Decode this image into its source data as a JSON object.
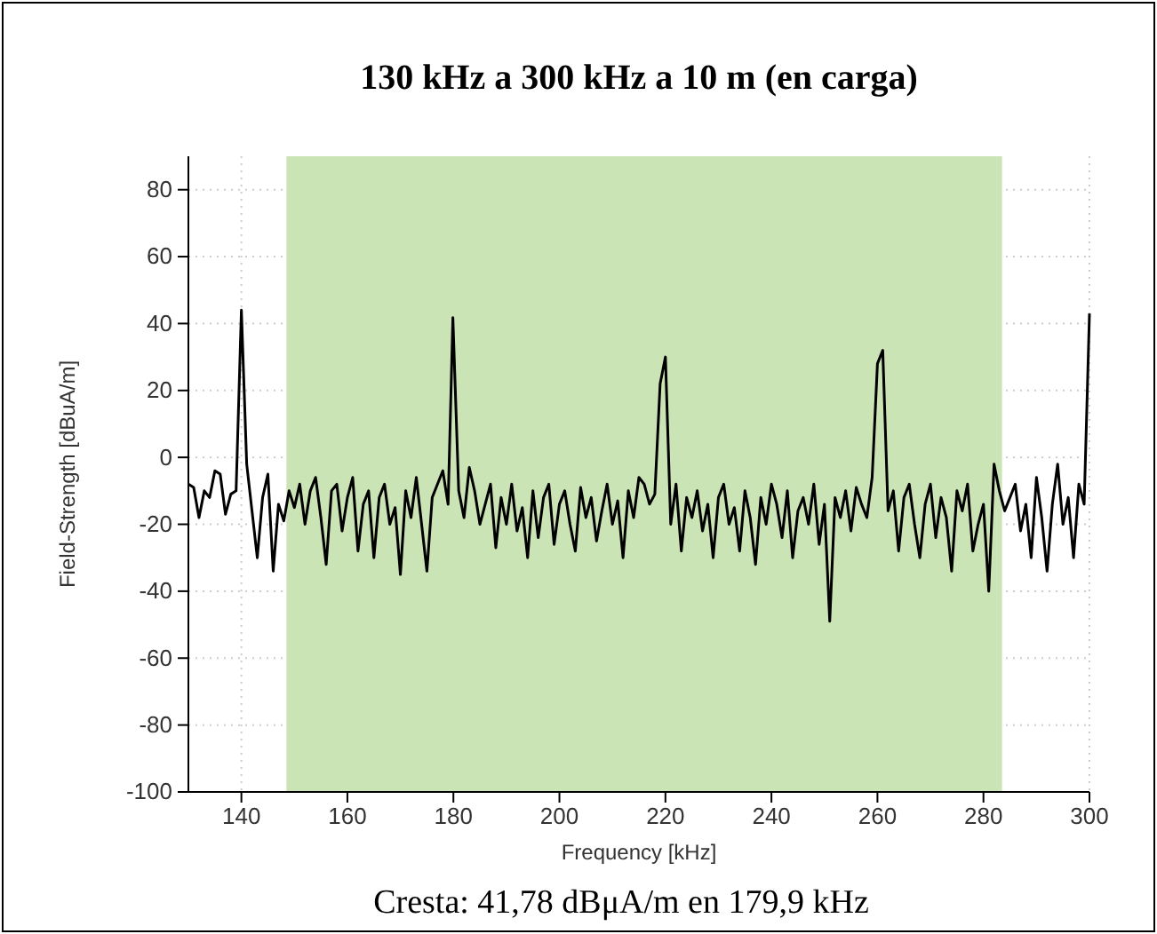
{
  "chart_data": {
    "type": "line",
    "title": "130 kHz a 300 kHz a 10 m (en carga)",
    "xlabel": "Frequency [kHz]",
    "ylabel": "Field-Strength [dBuA/m]",
    "annotations": [
      "Cresta: 41,78 dBμA/m en 179,9 kHz"
    ],
    "x": [
      130,
      131,
      132,
      133,
      134,
      135,
      136,
      137,
      138,
      139,
      140,
      141,
      142,
      143,
      144,
      145,
      146,
      147,
      148,
      149,
      150,
      151,
      152,
      153,
      154,
      155,
      156,
      157,
      158,
      159,
      160,
      161,
      162,
      163,
      164,
      165,
      166,
      167,
      168,
      169,
      170,
      171,
      172,
      173,
      174,
      175,
      176,
      177,
      178,
      179,
      179.9,
      181,
      182,
      183,
      184,
      185,
      186,
      187,
      188,
      189,
      190,
      191,
      192,
      193,
      194,
      195,
      196,
      197,
      198,
      199,
      200,
      201,
      202,
      203,
      204,
      205,
      206,
      207,
      208,
      209,
      210,
      211,
      212,
      213,
      214,
      215,
      216,
      217,
      218,
      219,
      220,
      221,
      222,
      223,
      224,
      225,
      226,
      227,
      228,
      229,
      230,
      231,
      232,
      233,
      234,
      235,
      236,
      237,
      238,
      239,
      240,
      241,
      242,
      243,
      244,
      245,
      246,
      247,
      248,
      249,
      250,
      251,
      252,
      253,
      254,
      255,
      256,
      257,
      258,
      259,
      260,
      261,
      262,
      263,
      264,
      265,
      266,
      267,
      268,
      269,
      270,
      271,
      272,
      273,
      274,
      275,
      276,
      277,
      278,
      279,
      280,
      281,
      282,
      283,
      284,
      285,
      286,
      287,
      288,
      289,
      290,
      291,
      292,
      293,
      294,
      295,
      296,
      297,
      298,
      299,
      300
    ],
    "series": [
      {
        "color": "#000000",
        "values": [
          -8,
          -9,
          -18,
          -10,
          -12,
          -4,
          -5,
          -17,
          -11,
          -10,
          44,
          -2,
          -16,
          -30,
          -12,
          -5,
          -34,
          -14,
          -19,
          -10,
          -15,
          -8,
          -20,
          -10,
          -6,
          -18,
          -32,
          -10,
          -8,
          -22,
          -12,
          -6,
          -28,
          -14,
          -10,
          -30,
          -12,
          -8,
          -20,
          -15,
          -35,
          -10,
          -18,
          -6,
          -20,
          -34,
          -12,
          -8,
          -4,
          -14,
          41.78,
          -10,
          -18,
          -3,
          -10,
          -20,
          -14,
          -8,
          -27,
          -12,
          -20,
          -8,
          -22,
          -15,
          -30,
          -10,
          -24,
          -12,
          -8,
          -26,
          -14,
          -10,
          -20,
          -28,
          -9,
          -18,
          -12,
          -25,
          -16,
          -8,
          -20,
          -13,
          -30,
          -10,
          -18,
          -6,
          -8,
          -14,
          -11,
          22,
          30,
          -20,
          -8,
          -28,
          -12,
          -18,
          -10,
          -22,
          -14,
          -30,
          -12,
          -8,
          -20,
          -15,
          -28,
          -10,
          -18,
          -32,
          -12,
          -20,
          -8,
          -14,
          -24,
          -10,
          -30,
          -16,
          -12,
          -20,
          -8,
          -26,
          -14,
          -49,
          -12,
          -18,
          -10,
          -22,
          -9,
          -14,
          -18,
          -6,
          28,
          32,
          -16,
          -10,
          -28,
          -12,
          -8,
          -20,
          -30,
          -14,
          -8,
          -24,
          -12,
          -18,
          -34,
          -10,
          -16,
          -8,
          -28,
          -20,
          -14,
          -40,
          -2,
          -10,
          -16,
          -12,
          -8,
          -22,
          -14,
          -30,
          -6,
          -18,
          -34,
          -14,
          -2,
          -20,
          -12,
          -30,
          -8,
          -14,
          43
        ]
      }
    ],
    "bands": [
      {
        "axis": "x",
        "from": 148.5,
        "to": 283.5,
        "color": "#cbe4b5"
      }
    ],
    "xlim": [
      130,
      300
    ],
    "xticks": [
      140,
      160,
      180,
      200,
      220,
      240,
      260,
      280,
      300
    ],
    "ylim": [
      -100,
      90
    ],
    "yticks": [
      -100,
      -80,
      -60,
      -40,
      -20,
      0,
      20,
      40,
      60,
      80
    ],
    "grid": true,
    "line_style": "solid",
    "marker": "none"
  }
}
